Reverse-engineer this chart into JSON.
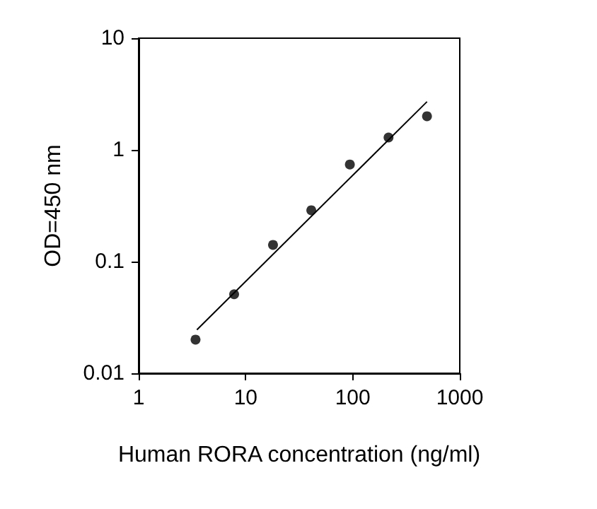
{
  "chart_data": {
    "type": "scatter",
    "xlabel": "Human RORA concentration (ng/ml)",
    "ylabel": "OD=450 nm",
    "log": "xy",
    "xlim": [
      1,
      1000
    ],
    "ylim": [
      0.01,
      10
    ],
    "xticks": [
      1,
      10,
      100,
      1000
    ],
    "yticks": [
      0.01,
      0.1,
      1,
      10
    ],
    "grid": false,
    "series": [
      {
        "color": "#000000",
        "marker": "circle",
        "x": [
          3.4,
          7.8,
          18,
          41,
          94,
          216,
          494
        ],
        "values": [
          0.02,
          0.051,
          0.141,
          0.288,
          0.74,
          1.29,
          2.0
        ]
      },
      {
        "type": "line",
        "color": "#000000",
        "marker": "none",
        "line_style": "solid",
        "x": [
          3.5,
          494
        ],
        "values": [
          0.0245,
          2.7
        ]
      }
    ]
  }
}
